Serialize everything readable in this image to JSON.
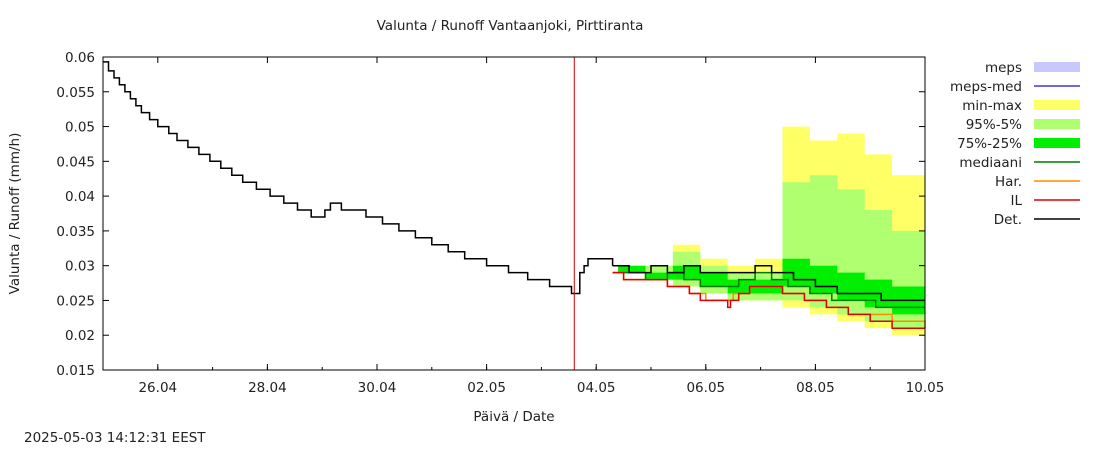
{
  "chart_data": {
    "type": "line",
    "title": "Valunta / Runoff  Vantaanjoki, Pirttiranta",
    "xlabel": "Päivä / Date",
    "ylabel": "Valunta / Runoff (mm/h)",
    "ylim": [
      0.015,
      0.06
    ],
    "y_ticks": [
      "0.06",
      "0.055",
      "0.05",
      "0.045",
      "0.04",
      "0.035",
      "0.03",
      "0.025",
      "0.02",
      "0.015"
    ],
    "x_tick_labels": [
      "26.04",
      "28.04",
      "30.04",
      "02.05",
      "04.05",
      "06.05",
      "08.05",
      "10.05"
    ],
    "xlim_days": [
      0,
      15
    ],
    "x_tick_days": [
      1,
      3,
      5,
      7,
      9,
      11,
      13,
      15
    ],
    "forecast_start_day": 8.6,
    "grid": false,
    "legend_position": "right",
    "timestamp": "2025-05-03 14:12:31 EEST",
    "legend": [
      {
        "label": "meps",
        "color": "#c8c8ff",
        "kind": "box"
      },
      {
        "label": "meps-med",
        "color": "#3b3bd0",
        "kind": "line"
      },
      {
        "label": "min-max",
        "color": "#ffff66",
        "kind": "box"
      },
      {
        "label": "95%-5%",
        "color": "#b0ff70",
        "kind": "box"
      },
      {
        "label": "75%-25%",
        "color": "#00ee00",
        "kind": "box"
      },
      {
        "label": "mediaani",
        "color": "#007a00",
        "kind": "line"
      },
      {
        "label": "Har.",
        "color": "#ff8c00",
        "kind": "line"
      },
      {
        "label": "IL",
        "color": "#e00000",
        "kind": "line"
      },
      {
        "label": "Det.",
        "color": "#000000",
        "kind": "line"
      }
    ],
    "history": {
      "name": "Det.",
      "color": "#000000",
      "points": [
        [
          0.0,
          0.0593
        ],
        [
          0.1,
          0.058
        ],
        [
          0.2,
          0.057
        ],
        [
          0.3,
          0.056
        ],
        [
          0.4,
          0.055
        ],
        [
          0.5,
          0.054
        ],
        [
          0.6,
          0.053
        ],
        [
          0.7,
          0.052
        ],
        [
          0.85,
          0.051
        ],
        [
          1.0,
          0.05
        ],
        [
          1.2,
          0.049
        ],
        [
          1.35,
          0.048
        ],
        [
          1.55,
          0.047
        ],
        [
          1.75,
          0.046
        ],
        [
          1.95,
          0.045
        ],
        [
          2.15,
          0.044
        ],
        [
          2.35,
          0.043
        ],
        [
          2.55,
          0.042
        ],
        [
          2.8,
          0.041
        ],
        [
          3.05,
          0.04
        ],
        [
          3.3,
          0.039
        ],
        [
          3.55,
          0.038
        ],
        [
          3.8,
          0.037
        ],
        [
          4.05,
          0.038
        ],
        [
          4.15,
          0.039
        ],
        [
          4.25,
          0.039
        ],
        [
          4.35,
          0.038
        ],
        [
          4.6,
          0.038
        ],
        [
          4.8,
          0.037
        ],
        [
          5.1,
          0.036
        ],
        [
          5.4,
          0.035
        ],
        [
          5.7,
          0.034
        ],
        [
          6.0,
          0.033
        ],
        [
          6.3,
          0.032
        ],
        [
          6.6,
          0.031
        ],
        [
          7.0,
          0.03
        ],
        [
          7.4,
          0.029
        ],
        [
          7.75,
          0.028
        ],
        [
          8.15,
          0.027
        ],
        [
          8.55,
          0.026
        ],
        [
          8.62,
          0.026
        ],
        [
          8.7,
          0.029
        ],
        [
          8.78,
          0.03
        ],
        [
          8.85,
          0.031
        ],
        [
          9.2,
          0.031
        ],
        [
          9.3,
          0.03
        ]
      ]
    },
    "band_x": [
      9.4,
      9.9,
      10.4,
      10.9,
      11.4,
      11.9,
      12.4,
      12.9,
      13.4,
      13.9,
      14.4,
      15.0
    ],
    "bands": [
      {
        "name": "min-max",
        "color": "#ffff66",
        "upper": [
          0.03,
          0.03,
          0.033,
          0.031,
          0.03,
          0.031,
          0.05,
          0.048,
          0.049,
          0.046,
          0.043,
          0.039
        ],
        "lower": [
          0.029,
          0.028,
          0.027,
          0.026,
          0.025,
          0.025,
          0.024,
          0.023,
          0.022,
          0.021,
          0.02,
          0.019
        ]
      },
      {
        "name": "95%-5%",
        "color": "#b0ff70",
        "upper": [
          0.03,
          0.03,
          0.032,
          0.03,
          0.029,
          0.029,
          0.042,
          0.043,
          0.041,
          0.038,
          0.035,
          0.032
        ],
        "lower": [
          0.029,
          0.028,
          0.027,
          0.026,
          0.025,
          0.025,
          0.025,
          0.024,
          0.023,
          0.022,
          0.021,
          0.02
        ]
      },
      {
        "name": "75%-25%",
        "color": "#00ee00",
        "upper": [
          0.03,
          0.029,
          0.03,
          0.029,
          0.028,
          0.028,
          0.031,
          0.03,
          0.029,
          0.028,
          0.027,
          0.026
        ],
        "lower": [
          0.029,
          0.028,
          0.028,
          0.027,
          0.026,
          0.026,
          0.027,
          0.026,
          0.025,
          0.024,
          0.023,
          0.023
        ]
      }
    ],
    "forecast_lines": [
      {
        "name": "mediaani",
        "color": "#007a00",
        "points": [
          [
            9.3,
            0.029
          ],
          [
            9.6,
            0.029
          ],
          [
            9.9,
            0.028
          ],
          [
            10.3,
            0.029
          ],
          [
            10.6,
            0.028
          ],
          [
            10.9,
            0.027
          ],
          [
            11.3,
            0.027
          ],
          [
            11.6,
            0.028
          ],
          [
            11.9,
            0.029
          ],
          [
            12.2,
            0.028
          ],
          [
            12.5,
            0.027
          ],
          [
            12.9,
            0.026
          ],
          [
            13.3,
            0.025
          ],
          [
            13.7,
            0.025
          ],
          [
            14.1,
            0.024
          ],
          [
            14.5,
            0.024
          ],
          [
            15.0,
            0.024
          ]
        ]
      },
      {
        "name": "Har.",
        "color": "#ff8c00",
        "points": [
          [
            9.3,
            0.029
          ],
          [
            9.5,
            0.028
          ],
          [
            10.0,
            0.028
          ],
          [
            10.3,
            0.027
          ],
          [
            10.7,
            0.026
          ],
          [
            11.0,
            0.025
          ],
          [
            11.3,
            0.025
          ],
          [
            11.5,
            0.026
          ],
          [
            11.8,
            0.027
          ],
          [
            12.1,
            0.027
          ],
          [
            12.4,
            0.026
          ],
          [
            12.8,
            0.025
          ],
          [
            13.2,
            0.024
          ],
          [
            13.6,
            0.023
          ],
          [
            14.0,
            0.023
          ],
          [
            14.4,
            0.022
          ],
          [
            15.0,
            0.021
          ]
        ]
      },
      {
        "name": "IL",
        "color": "#e00000",
        "points": [
          [
            9.3,
            0.029
          ],
          [
            9.5,
            0.028
          ],
          [
            10.0,
            0.028
          ],
          [
            10.3,
            0.027
          ],
          [
            10.7,
            0.026
          ],
          [
            10.9,
            0.025
          ],
          [
            11.2,
            0.025
          ],
          [
            11.4,
            0.024
          ],
          [
            11.45,
            0.025
          ],
          [
            11.6,
            0.026
          ],
          [
            11.8,
            0.027
          ],
          [
            12.1,
            0.027
          ],
          [
            12.4,
            0.026
          ],
          [
            12.8,
            0.025
          ],
          [
            13.2,
            0.024
          ],
          [
            13.6,
            0.023
          ],
          [
            14.0,
            0.022
          ],
          [
            14.4,
            0.021
          ],
          [
            15.0,
            0.021
          ]
        ]
      },
      {
        "name": "Det.",
        "color": "#000000",
        "points": [
          [
            9.3,
            0.03
          ],
          [
            9.6,
            0.029
          ],
          [
            10.0,
            0.03
          ],
          [
            10.3,
            0.029
          ],
          [
            10.6,
            0.03
          ],
          [
            10.9,
            0.029
          ],
          [
            11.3,
            0.029
          ],
          [
            11.6,
            0.029
          ],
          [
            11.9,
            0.03
          ],
          [
            12.2,
            0.029
          ],
          [
            12.6,
            0.028
          ],
          [
            13.0,
            0.027
          ],
          [
            13.4,
            0.026
          ],
          [
            13.8,
            0.026
          ],
          [
            14.2,
            0.025
          ],
          [
            14.6,
            0.025
          ],
          [
            15.0,
            0.025
          ]
        ]
      }
    ]
  }
}
